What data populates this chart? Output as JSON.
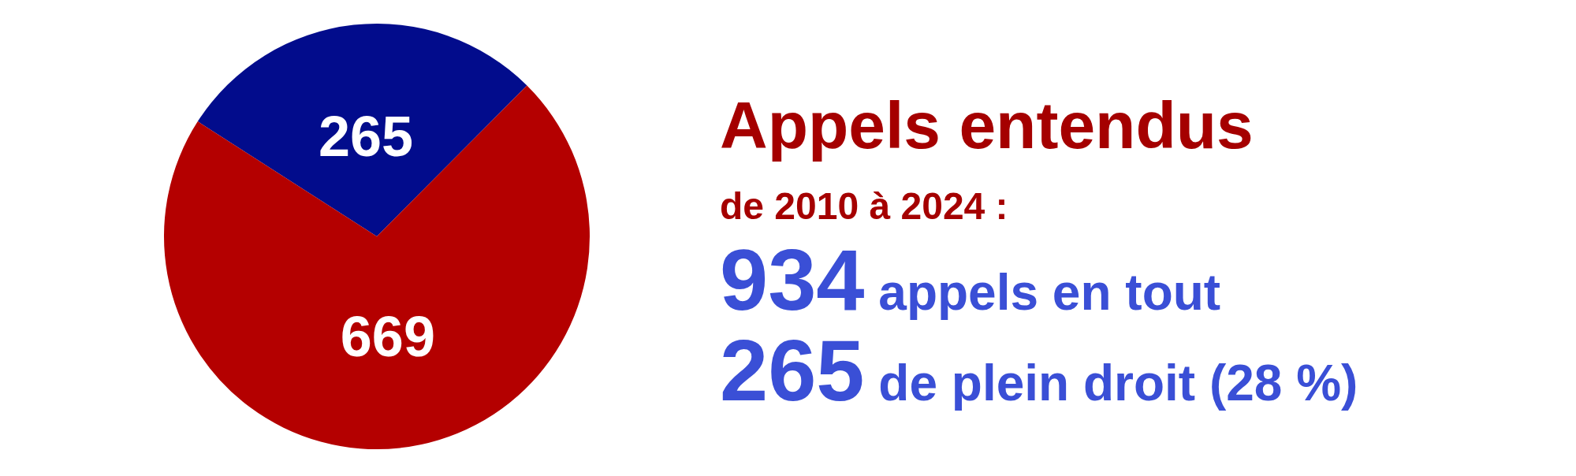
{
  "chart_data": {
    "type": "pie",
    "title": "Appels entendus",
    "subtitle": "de 2010 à 2024 :",
    "categories": [
      null,
      null
    ],
    "values": [
      265,
      669
    ],
    "colors": [
      "#020c8c",
      "#b40000"
    ],
    "data_labels": true,
    "annotations": [
      "934 appels en tout",
      "265 de plein droit (28 %)"
    ]
  }
}
